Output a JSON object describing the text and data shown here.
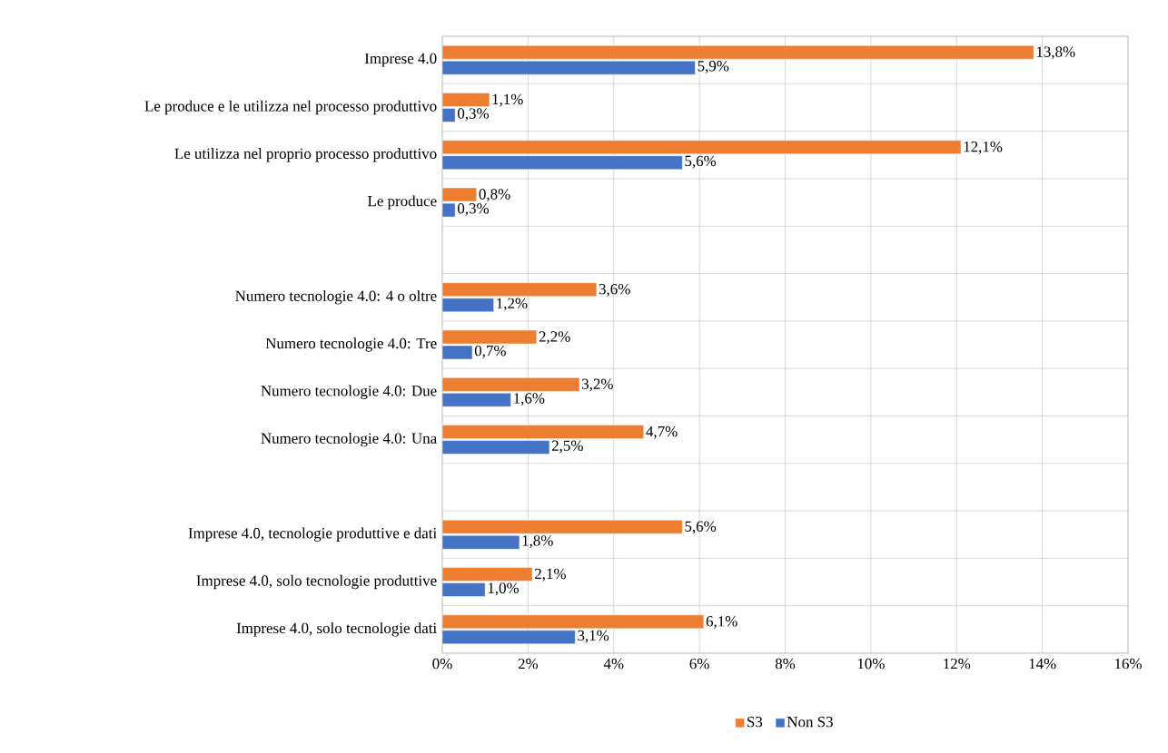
{
  "chart_data": {
    "type": "bar",
    "orientation": "horizontal",
    "categories": [
      "Imprese 4.0",
      "Le produce e le utilizza nel processo produttivo",
      "Le utilizza nel proprio processo produttivo",
      "Le produce",
      null,
      "Numero tecnologie 4.0: 4 o oltre",
      "Numero tecnologie 4.0: Tre",
      "Numero tecnologie 4.0: Due",
      "Numero tecnologie 4.0: Una",
      null,
      "Imprese 4.0, tecnologie produttive e dati",
      "Imprese 4.0, solo tecnologie produttive",
      "Imprese 4.0, solo tecnologie dati"
    ],
    "series": [
      {
        "name": "S3",
        "color": "#ed7d31",
        "values": [
          13.8,
          1.1,
          12.1,
          0.8,
          null,
          3.6,
          2.2,
          3.2,
          4.7,
          null,
          5.6,
          2.1,
          6.1
        ],
        "value_labels": [
          "13,8%",
          "1,1%",
          "12,1%",
          "0,8%",
          null,
          "3,6%",
          "2,2%",
          "3,2%",
          "4,7%",
          null,
          "5,6%",
          "2,1%",
          "6,1%"
        ]
      },
      {
        "name": "Non S3",
        "color": "#4472c4",
        "values": [
          5.9,
          0.3,
          5.6,
          0.3,
          null,
          1.2,
          0.7,
          1.6,
          2.5,
          null,
          1.8,
          1.0,
          3.1
        ],
        "value_labels": [
          "5,9%",
          "0,3%",
          "5,6%",
          "0,3%",
          null,
          "1,2%",
          "0,7%",
          "1,6%",
          "2,5%",
          null,
          "1,8%",
          "1,0%",
          "3,1%"
        ]
      }
    ],
    "xlim": [
      0,
      16
    ],
    "xticks": [
      {
        "value": 0,
        "label": "0%"
      },
      {
        "value": 2,
        "label": "2%"
      },
      {
        "value": 4,
        "label": "4%"
      },
      {
        "value": 6,
        "label": "6%"
      },
      {
        "value": 8,
        "label": "8%"
      },
      {
        "value": 10,
        "label": "10%"
      },
      {
        "value": 12,
        "label": "12%"
      },
      {
        "value": 14,
        "label": "14%"
      },
      {
        "value": 16,
        "label": "16%"
      }
    ],
    "grid": true,
    "legend": "bottom"
  }
}
